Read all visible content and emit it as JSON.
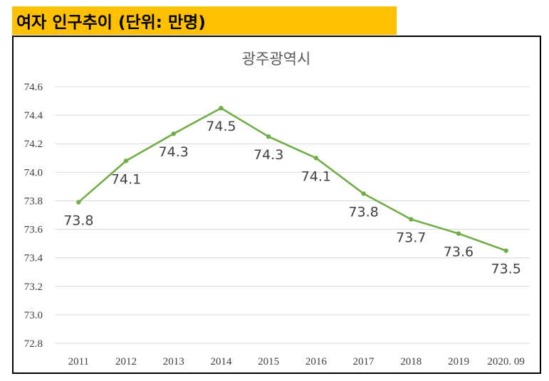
{
  "header": {
    "title": "여자 인구추이 (단위: 만명)"
  },
  "colors": {
    "header_bg": "#ffc000",
    "series": "#70ad47",
    "grid": "#d9d9d9"
  },
  "chart_data": {
    "type": "line",
    "title": "광주광역시",
    "xlabel": "",
    "ylabel": "",
    "categories": [
      "2011",
      "2012",
      "2013",
      "2014",
      "2015",
      "2016",
      "2017",
      "2018",
      "2019",
      "2020. 09"
    ],
    "series": [
      {
        "name": "광주광역시",
        "values": [
          73.79,
          74.08,
          74.27,
          74.45,
          74.25,
          74.1,
          73.85,
          73.67,
          73.57,
          73.45
        ],
        "labels": [
          "73.8",
          "74.1",
          "74.3",
          "74.5",
          "74.3",
          "74.1",
          "73.8",
          "73.7",
          "73.6",
          "73.5"
        ]
      }
    ],
    "ylim": [
      72.8,
      74.6
    ],
    "yticks": [
      "72.8",
      "73.0",
      "73.2",
      "73.4",
      "73.6",
      "73.8",
      "74.0",
      "74.2",
      "74.4",
      "74.6"
    ],
    "grid": true,
    "legend": "none"
  }
}
